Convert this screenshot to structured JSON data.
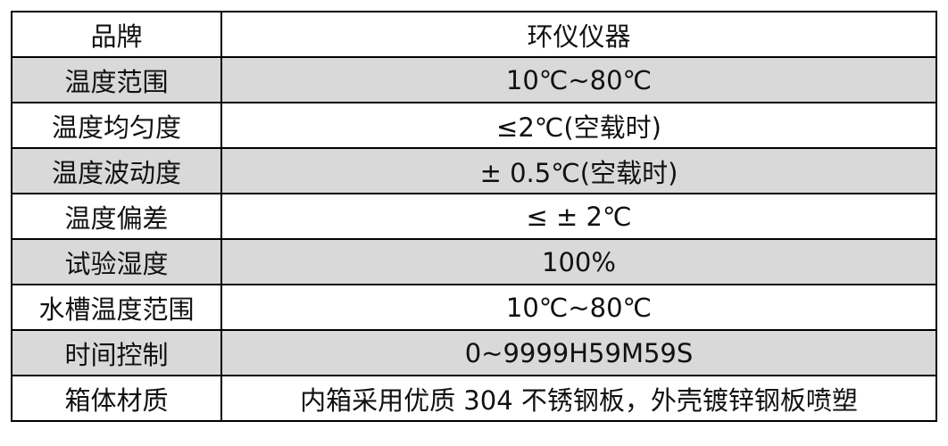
{
  "table": {
    "rows": [
      [
        "品牌",
        "环仪仪器"
      ],
      [
        "温度范围",
        "10℃~80℃"
      ],
      [
        "温度均匀度",
        "≤2℃(空载时)"
      ],
      [
        "温度波动度",
        "± 0.5℃(空载时)"
      ],
      [
        "温度偏差",
        "≤ ± 2℃"
      ],
      [
        "试验湿度",
        "100%"
      ],
      [
        "水槽温度范围",
        "10℃~80℃"
      ],
      [
        "时间控制",
        "0~9999H59M59S"
      ],
      [
        "箱体材质",
        "内箱采用优质 304 不锈钢板，外壳镀锌钢板喷塑"
      ]
    ]
  }
}
